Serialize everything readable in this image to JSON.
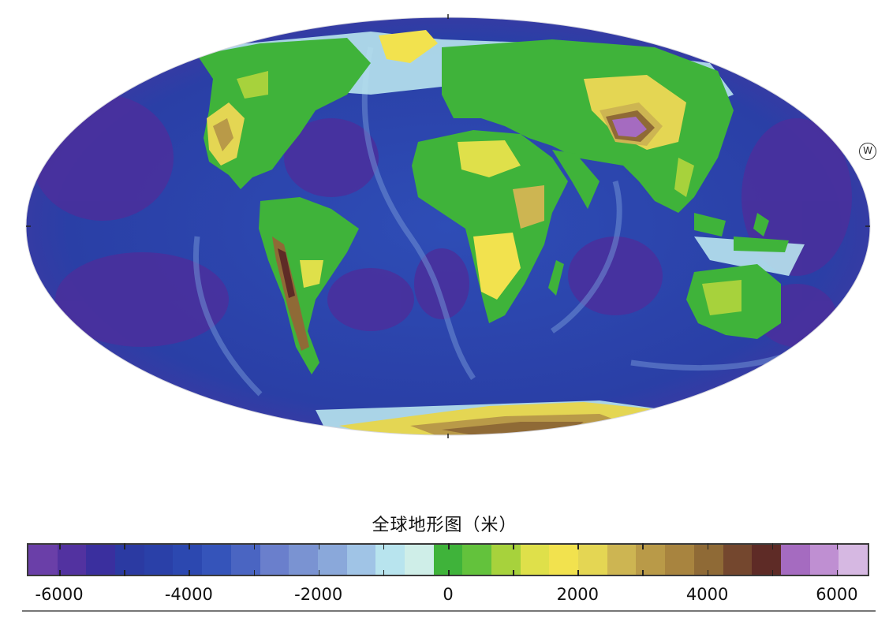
{
  "map": {
    "projection": "mollweide",
    "marker_label": "W"
  },
  "legend": {
    "title": "全球地形图（米）",
    "unit": "米",
    "range": [
      -6500,
      6500
    ],
    "step": 500,
    "tick_labels": [
      "-6000",
      "-4000",
      "-2000",
      "0",
      "2000",
      "4000",
      "6000"
    ],
    "tick_values": [
      -6000,
      -4000,
      -2000,
      0,
      2000,
      4000,
      6000
    ],
    "colors": [
      "#6a3fa8",
      "#5232a0",
      "#3a2f9e",
      "#2b3aa2",
      "#2a40a8",
      "#2c48b0",
      "#3554ba",
      "#4a65c2",
      "#6a7fcc",
      "#7a93d2",
      "#8aa8da",
      "#a0c4e6",
      "#b8e4ee",
      "#cfeee8",
      "#3fb33a",
      "#63c23c",
      "#a7d23c",
      "#dfe04a",
      "#f2e24e",
      "#e4d653",
      "#cdb552",
      "#b99a48",
      "#a8843f",
      "#8f6a36",
      "#74472e",
      "#5e2b26",
      "#a56bc0",
      "#bf8fd2",
      "#d6b8e2"
    ]
  }
}
